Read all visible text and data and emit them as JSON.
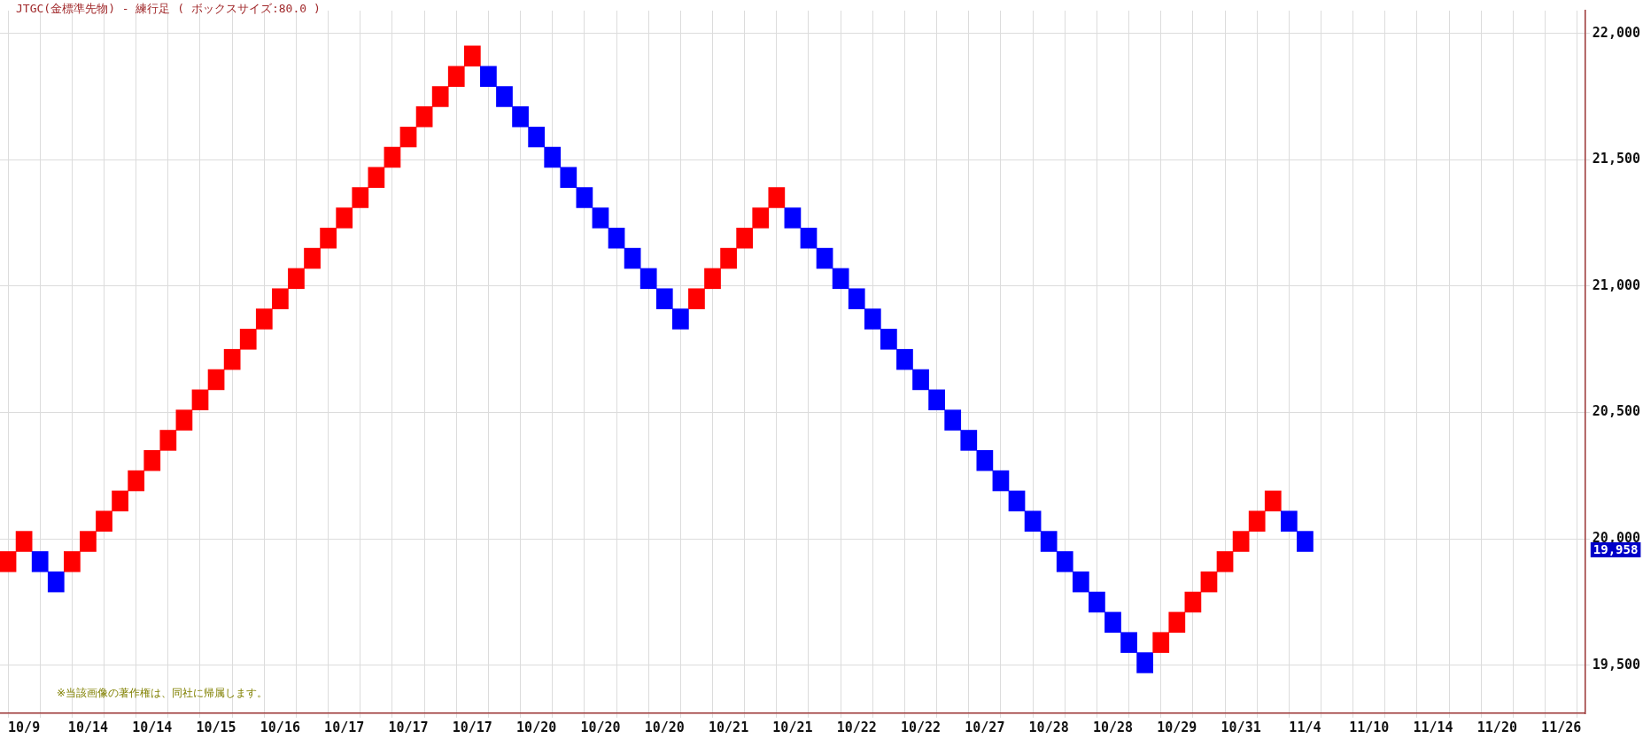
{
  "chart_data": {
    "type": "bar",
    "title": "JTGC(金標準先物) - 練行足 ( ボックスサイズ:80.0 )",
    "categories": [
      null,
      "10/9",
      null,
      null,
      null,
      "10/14",
      null,
      null,
      null,
      "10/14",
      null,
      null,
      null,
      "10/15",
      null,
      null,
      null,
      "10/16",
      null,
      null,
      null,
      "10/17",
      null,
      null,
      null,
      "10/17",
      null,
      null,
      null,
      "10/17",
      null,
      null,
      null,
      "10/20",
      null,
      null,
      null,
      "10/20",
      null,
      null,
      null,
      "10/20",
      null,
      null,
      null,
      "10/21",
      null,
      null,
      null,
      "10/21",
      null,
      null,
      null,
      "10/22",
      null,
      null,
      null,
      "10/22",
      null,
      null,
      null,
      "10/27",
      null,
      null,
      null,
      "10/28",
      null,
      null,
      null,
      "10/28",
      null,
      null,
      null,
      "10/29",
      null,
      null,
      null,
      "10/31",
      null,
      null,
      null,
      "11/4",
      null,
      null,
      null,
      "11/10",
      null,
      null,
      null,
      "11/14",
      null,
      null,
      null,
      "11/20",
      null,
      null,
      null,
      "11/26",
      null
    ],
    "values": [
      80,
      80,
      80,
      80,
      80,
      80,
      80,
      80,
      80,
      80,
      80,
      80,
      80,
      80,
      80,
      80,
      80,
      80,
      80,
      80,
      80,
      80,
      80,
      80,
      80,
      80,
      80,
      80,
      80,
      80,
      80,
      80,
      80,
      80,
      80,
      80,
      80,
      80,
      80,
      80,
      80,
      80,
      80,
      80,
      80,
      80,
      80,
      80,
      80,
      80,
      80,
      80,
      80,
      80,
      80,
      80,
      80,
      80,
      80,
      80,
      80,
      80,
      80,
      80,
      80,
      80,
      80,
      80,
      80,
      80,
      80,
      80,
      80,
      80,
      80,
      80,
      80,
      80,
      80,
      80,
      80,
      80,
      null,
      null,
      null,
      null,
      null,
      null,
      null,
      null,
      null,
      null,
      null,
      null,
      null,
      null,
      null,
      null,
      null
    ],
    "base": [
      19870,
      19950,
      19870,
      19790,
      19870,
      19950,
      20030,
      20110,
      20190,
      20270,
      20350,
      20430,
      20510,
      20590,
      20670,
      20750,
      20830,
      20910,
      20990,
      21070,
      21150,
      21230,
      21310,
      21390,
      21470,
      21550,
      21630,
      21710,
      21790,
      21870,
      21790,
      21710,
      21630,
      21550,
      21470,
      21390,
      21310,
      21230,
      21150,
      21070,
      20990,
      20910,
      20830,
      20910,
      20990,
      21070,
      21150,
      21230,
      21310,
      21230,
      21150,
      21070,
      20990,
      20910,
      20830,
      20750,
      20670,
      20590,
      20510,
      20430,
      20350,
      20270,
      20190,
      20110,
      20030,
      19950,
      19870,
      19790,
      19710,
      19630,
      19550,
      19470,
      19550,
      19630,
      19710,
      19790,
      19870,
      19950,
      20030,
      20110,
      20030,
      19950,
      null,
      null,
      null,
      null,
      null,
      null,
      null,
      null,
      null,
      null,
      null,
      null,
      null,
      null,
      null,
      null,
      null
    ],
    "colors": [
      "#ff0000",
      "#ff0000",
      "#0000ff",
      "#0000ff",
      "#ff0000",
      "#ff0000",
      "#ff0000",
      "#ff0000",
      "#ff0000",
      "#ff0000",
      "#ff0000",
      "#ff0000",
      "#ff0000",
      "#ff0000",
      "#ff0000",
      "#ff0000",
      "#ff0000",
      "#ff0000",
      "#ff0000",
      "#ff0000",
      "#ff0000",
      "#ff0000",
      "#ff0000",
      "#ff0000",
      "#ff0000",
      "#ff0000",
      "#ff0000",
      "#ff0000",
      "#ff0000",
      "#ff0000",
      "#0000ff",
      "#0000ff",
      "#0000ff",
      "#0000ff",
      "#0000ff",
      "#0000ff",
      "#0000ff",
      "#0000ff",
      "#0000ff",
      "#0000ff",
      "#0000ff",
      "#0000ff",
      "#0000ff",
      "#ff0000",
      "#ff0000",
      "#ff0000",
      "#ff0000",
      "#ff0000",
      "#ff0000",
      "#0000ff",
      "#0000ff",
      "#0000ff",
      "#0000ff",
      "#0000ff",
      "#0000ff",
      "#0000ff",
      "#0000ff",
      "#0000ff",
      "#0000ff",
      "#0000ff",
      "#0000ff",
      "#0000ff",
      "#0000ff",
      "#0000ff",
      "#0000ff",
      "#0000ff",
      "#0000ff",
      "#0000ff",
      "#0000ff",
      "#0000ff",
      "#0000ff",
      "#0000ff",
      "#ff0000",
      "#ff0000",
      "#ff0000",
      "#ff0000",
      "#ff0000",
      "#ff0000",
      "#ff0000",
      "#ff0000",
      "#0000ff",
      "#0000ff",
      null,
      null,
      null,
      null,
      null,
      null,
      null,
      null,
      null,
      null,
      null,
      null,
      null,
      null,
      null,
      null,
      null
    ],
    "ylim": [
      19310,
      22090
    ],
    "yticks": [
      {
        "value": 19500,
        "label": "19,500"
      },
      {
        "value": 20000,
        "label": "20,000"
      },
      {
        "value": 20500,
        "label": "20,500"
      },
      {
        "value": 21000,
        "label": "21,000"
      },
      {
        "value": 21500,
        "label": "21,500"
      },
      {
        "value": 22000,
        "label": "22,000"
      }
    ],
    "grid": true,
    "legend": false,
    "annotations": [
      "19,958",
      "※当該画像の著作権は、同社に帰属します。"
    ]
  }
}
